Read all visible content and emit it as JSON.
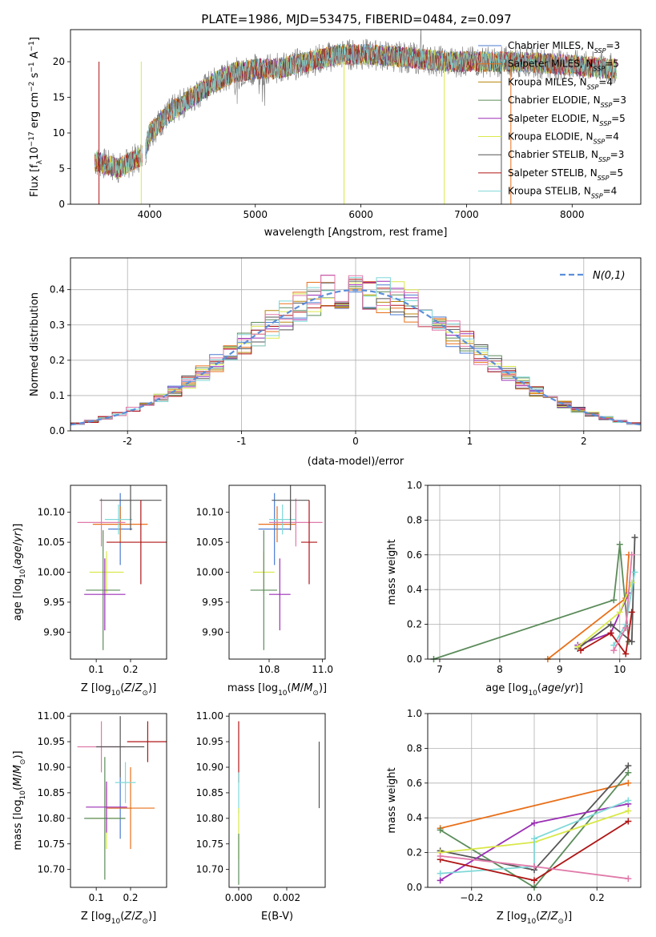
{
  "figure_title": "PLATE=1986, MJD=53475, FIBERID=0484, z=0.097",
  "colors": {
    "Chabrier MILES": "#4a7bd0",
    "Salpeter MILES": "#e8701a",
    "Kroupa MILES": "#b8860b",
    "Chabrier ELODIE": "#5b8c5a",
    "Salpeter ELODIE": "#9b2fb5",
    "Kroupa ELODIE": "#d9e84a",
    "Chabrier STELIB": "#555555",
    "Salpeter STELIB": "#b01515",
    "Kroupa STELIB": "#7fd8d8",
    "pink": "#e07aaa",
    "gauss": "#5b8fd9"
  },
  "chart_data": [
    {
      "id": "spectrum",
      "type": "line",
      "title": "PLATE=1986, MJD=53475, FIBERID=0484, z=0.097",
      "xlabel": "wavelength [Angstrom, rest frame]",
      "ylabel": "Flux [f_λ10^-17 erg cm^-2 s^-1 A^-1]",
      "xlim": [
        3250,
        8650
      ],
      "ylim": [
        0,
        24.5
      ],
      "xticks": [
        4000,
        5000,
        6000,
        7000,
        8000
      ],
      "yticks": [
        0,
        5,
        10,
        15,
        20
      ],
      "legend": "top-right",
      "grid": false,
      "series": [
        {
          "name": "Chabrier MILES, N_SSP=3"
        },
        {
          "name": "Salpeter MILES, N_SSP=5"
        },
        {
          "name": "Kroupa MILES, N_SSP=4"
        },
        {
          "name": "Chabrier ELODIE, N_SSP=3"
        },
        {
          "name": "Salpeter ELODIE, N_SSP=5"
        },
        {
          "name": "Kroupa ELODIE, N_SSP=4"
        },
        {
          "name": "Chabrier STELIB, N_SSP=3"
        },
        {
          "name": "Salpeter STELIB, N_SSP=5"
        },
        {
          "name": "Kroupa STELIB, N_SSP=4"
        }
      ],
      "continuum": [
        [
          3500,
          6
        ],
        [
          3700,
          5
        ],
        [
          3950,
          7
        ],
        [
          4000,
          10
        ],
        [
          4200,
          13
        ],
        [
          4400,
          15
        ],
        [
          4600,
          17
        ],
        [
          4800,
          18.5
        ],
        [
          5000,
          19
        ],
        [
          5200,
          19
        ],
        [
          5500,
          20
        ],
        [
          5800,
          21
        ],
        [
          6100,
          21
        ],
        [
          6500,
          20.5
        ],
        [
          6800,
          20
        ],
        [
          7100,
          20
        ],
        [
          7500,
          20
        ],
        [
          8000,
          19.5
        ],
        [
          8400,
          19
        ]
      ]
    },
    {
      "id": "residuals",
      "type": "line",
      "xlabel": "(data-model)/error",
      "ylabel": "Normed distribution",
      "xlim": [
        -2.5,
        2.5
      ],
      "ylim": [
        0,
        0.49
      ],
      "xticks": [
        -2,
        -1,
        0,
        1,
        2
      ],
      "yticks": [
        0.0,
        0.1,
        0.2,
        0.3,
        0.4
      ],
      "grid": true,
      "legend": "top-right",
      "gauss_label": "N(0,1)",
      "bins": 41
    },
    {
      "id": "age-vs-Z",
      "type": "scatter",
      "xlabel": "Z [log10(Z/Z⊙)]",
      "ylabel": "age [log10(age/yr)]",
      "xlim": [
        0.025,
        0.305
      ],
      "ylim": [
        9.855,
        10.145
      ],
      "xticks": [
        0.1,
        0.2
      ],
      "yticks": [
        9.9,
        9.95,
        10.0,
        10.05,
        10.1
      ],
      "points": [
        {
          "color": "Chabrier MILES",
          "x": 0.17,
          "xe": 0.035,
          "y": 10.072,
          "ye": 0.06
        },
        {
          "color": "Salpeter MILES",
          "x": 0.17,
          "xe": 0.08,
          "y": 10.08,
          "ye": 0.03
        },
        {
          "color": "Kroupa STELIB",
          "x": 0.165,
          "xe": 0.04,
          "y": 10.088,
          "ye": 0.025
        },
        {
          "color": "pink",
          "x": 0.115,
          "xe": 0.07,
          "y": 10.083,
          "ye": 0.04
        },
        {
          "color": "Chabrier STELIB",
          "x": 0.2,
          "xe": 0.09,
          "y": 10.12,
          "ye": 0.05
        },
        {
          "color": "Salpeter STELIB",
          "x": 0.23,
          "xe": 0.1,
          "y": 10.05,
          "ye": 0.07
        },
        {
          "color": "Kroupa ELODIE",
          "x": 0.13,
          "xe": 0.05,
          "y": 10.0,
          "ye": 0.035
        },
        {
          "color": "Chabrier ELODIE",
          "x": 0.12,
          "xe": 0.05,
          "y": 9.97,
          "ye": 0.1
        },
        {
          "color": "Salpeter ELODIE",
          "x": 0.125,
          "xe": 0.06,
          "y": 9.963,
          "ye": 0.06
        }
      ]
    },
    {
      "id": "age-vs-mass",
      "type": "scatter",
      "xlabel": "mass [log10(M/M⊙)]",
      "ylabel": "",
      "xlim": [
        10.65,
        11.01
      ],
      "ylim": [
        9.855,
        10.145
      ],
      "xticks": [
        10.8,
        11.0
      ],
      "yticks": [
        9.9,
        9.95,
        10.0,
        10.05,
        10.1
      ],
      "points": [
        {
          "color": "Chabrier MILES",
          "x": 10.82,
          "xe": 0.06,
          "y": 10.072,
          "ye": 0.06
        },
        {
          "color": "Salpeter MILES",
          "x": 10.83,
          "xe": 0.07,
          "y": 10.08,
          "ye": 0.03
        },
        {
          "color": "Kroupa STELIB",
          "x": 10.85,
          "xe": 0.05,
          "y": 10.088,
          "ye": 0.025
        },
        {
          "color": "pink",
          "x": 10.9,
          "xe": 0.1,
          "y": 10.083,
          "ye": 0.04
        },
        {
          "color": "Chabrier STELIB",
          "x": 10.88,
          "xe": 0.07,
          "y": 10.12,
          "ye": 0.05
        },
        {
          "color": "Salpeter STELIB",
          "x": 10.95,
          "xe": 0.03,
          "y": 10.05,
          "ye": 0.07
        },
        {
          "color": "Kroupa ELODIE",
          "x": 10.78,
          "xe": 0.04,
          "y": 10.0,
          "ye": 0.035
        },
        {
          "color": "Chabrier ELODIE",
          "x": 10.78,
          "xe": 0.05,
          "y": 9.97,
          "ye": 0.1
        },
        {
          "color": "Salpeter ELODIE",
          "x": 10.84,
          "xe": 0.04,
          "y": 9.963,
          "ye": 0.06
        }
      ]
    },
    {
      "id": "mass-weight-vs-age",
      "type": "line",
      "xlabel": "age [log10(age/yr)]",
      "ylabel": "mass weight",
      "xlim": [
        6.8,
        10.35
      ],
      "ylim": [
        0,
        1.0
      ],
      "xticks": [
        7,
        8,
        9,
        10
      ],
      "yticks": [
        0.0,
        0.2,
        0.4,
        0.6,
        0.8,
        1.0
      ],
      "grid": true,
      "series": [
        {
          "color": "Chabrier ELODIE",
          "x": [
            6.9,
            9.9,
            10.0,
            10.15
          ],
          "y": [
            0.0,
            0.34,
            0.66,
            0.1
          ]
        },
        {
          "color": "Salpeter MILES",
          "x": [
            8.8,
            10.1,
            10.15
          ],
          "y": [
            0.0,
            0.35,
            0.6
          ]
        },
        {
          "color": "Salpeter ELODIE",
          "x": [
            9.3,
            9.85,
            10.15
          ],
          "y": [
            0.08,
            0.15,
            0.38
          ]
        },
        {
          "color": "Chabrier STELIB",
          "x": [
            9.3,
            9.85,
            10.2,
            10.25
          ],
          "y": [
            0.06,
            0.2,
            0.1,
            0.7
          ]
        },
        {
          "color": "Kroupa ELODIE",
          "x": [
            9.3,
            10.0,
            10.2
          ],
          "y": [
            0.07,
            0.27,
            0.44
          ]
        },
        {
          "color": "Kroupa STELIB",
          "x": [
            9.9,
            10.1,
            10.25
          ],
          "y": [
            0.08,
            0.2,
            0.5
          ]
        },
        {
          "color": "Salpeter STELIB",
          "x": [
            9.35,
            9.85,
            10.1,
            10.2
          ],
          "y": [
            0.05,
            0.15,
            0.03,
            0.27
          ]
        },
        {
          "color": "pink",
          "x": [
            9.9,
            10.1,
            10.2
          ],
          "y": [
            0.05,
            0.18,
            0.6
          ]
        }
      ]
    },
    {
      "id": "mass-vs-Z",
      "type": "scatter",
      "xlabel": "Z [log10(Z/Z⊙)]",
      "ylabel": "mass [log10(M/M⊙)]",
      "xlim": [
        0.025,
        0.305
      ],
      "ylim": [
        10.665,
        11.005
      ],
      "xticks": [
        0.1,
        0.2
      ],
      "yticks": [
        10.7,
        10.75,
        10.8,
        10.85,
        10.9,
        10.95,
        11.0
      ],
      "points": [
        {
          "color": "Chabrier MILES",
          "x": 0.17,
          "xe": 0.035,
          "y": 10.82,
          "ye": 0.06
        },
        {
          "color": "Salpeter MILES",
          "x": 0.2,
          "xe": 0.07,
          "y": 10.82,
          "ye": 0.08
        },
        {
          "color": "Kroupa STELIB",
          "x": 0.185,
          "xe": 0.03,
          "y": 10.87,
          "ye": 0.04
        },
        {
          "color": "pink",
          "x": 0.115,
          "xe": 0.07,
          "y": 10.94,
          "ye": 0.05
        },
        {
          "color": "Chabrier STELIB",
          "x": 0.17,
          "xe": 0.07,
          "y": 10.94,
          "ye": 0.06
        },
        {
          "color": "Salpeter STELIB",
          "x": 0.25,
          "xe": 0.06,
          "y": 10.95,
          "ye": 0.04
        },
        {
          "color": "Kroupa ELODIE",
          "x": 0.13,
          "xe": 0.05,
          "y": 10.8,
          "ye": 0.06
        },
        {
          "color": "Chabrier ELODIE",
          "x": 0.125,
          "xe": 0.06,
          "y": 10.8,
          "ye": 0.12
        },
        {
          "color": "Salpeter ELODIE",
          "x": 0.13,
          "xe": 0.06,
          "y": 10.822,
          "ye": 0.05
        }
      ]
    },
    {
      "id": "mass-vs-EBV",
      "type": "scatter",
      "xlabel": "E(B-V)",
      "ylabel": "",
      "xlim": [
        -0.0004,
        0.0036
      ],
      "ylim": [
        10.665,
        11.005
      ],
      "xticks": [
        0.0,
        0.002
      ],
      "yticks": [
        10.7,
        10.75,
        10.8,
        10.85,
        10.9,
        10.95,
        11.0
      ],
      "points": [
        {
          "color": "Salpeter STELIB",
          "x": 0.0,
          "xe": 0,
          "y": 10.93,
          "ye": 0.06
        },
        {
          "color": "Kroupa STELIB",
          "x": 0.0,
          "xe": 0,
          "y": 10.85,
          "ye": 0.04
        },
        {
          "color": "Kroupa ELODIE",
          "x": 0.0,
          "xe": 0,
          "y": 10.77,
          "ye": 0.05
        },
        {
          "color": "Chabrier ELODIE",
          "x": 0.0,
          "xe": 0,
          "y": 10.72,
          "ye": 0.05
        },
        {
          "color": "Chabrier STELIB",
          "x": 0.00335,
          "xe": 0,
          "y": 10.885,
          "ye": 0.065
        }
      ]
    },
    {
      "id": "mass-weight-vs-Z",
      "type": "line",
      "xlabel": "Z [log10(Z/Z⊙)]",
      "ylabel": "mass weight",
      "xlim": [
        -0.34,
        0.34
      ],
      "ylim": [
        0,
        1.0
      ],
      "xticks": [
        -0.2,
        0.0,
        0.2
      ],
      "yticks": [
        0.0,
        0.2,
        0.4,
        0.6,
        0.8,
        1.0
      ],
      "grid": true,
      "series": [
        {
          "color": "Salpeter MILES",
          "x": [
            -0.3,
            0.3
          ],
          "y": [
            0.34,
            0.6
          ]
        },
        {
          "color": "Chabrier ELODIE",
          "x": [
            -0.3,
            0.0,
            0.3
          ],
          "y": [
            0.33,
            0.0,
            0.66
          ]
        },
        {
          "color": "Chabrier STELIB",
          "x": [
            -0.3,
            0.0,
            0.3
          ],
          "y": [
            0.21,
            0.1,
            0.7
          ]
        },
        {
          "color": "Salpeter ELODIE",
          "x": [
            -0.3,
            0.0,
            0.3
          ],
          "y": [
            0.04,
            0.37,
            0.48
          ]
        },
        {
          "color": "Kroupa ELODIE",
          "x": [
            -0.3,
            0.0,
            0.3
          ],
          "y": [
            0.2,
            0.26,
            0.44
          ]
        },
        {
          "color": "Kroupa STELIB",
          "x": [
            -0.3,
            0.0,
            0.0,
            0.3
          ],
          "y": [
            0.08,
            0.12,
            0.28,
            0.5
          ]
        },
        {
          "color": "Salpeter STELIB",
          "x": [
            -0.3,
            0.0,
            0.3
          ],
          "y": [
            0.16,
            0.04,
            0.38
          ]
        },
        {
          "color": "pink",
          "x": [
            -0.3,
            0.0,
            0.3
          ],
          "y": [
            0.18,
            0.12,
            0.05
          ]
        }
      ]
    }
  ]
}
